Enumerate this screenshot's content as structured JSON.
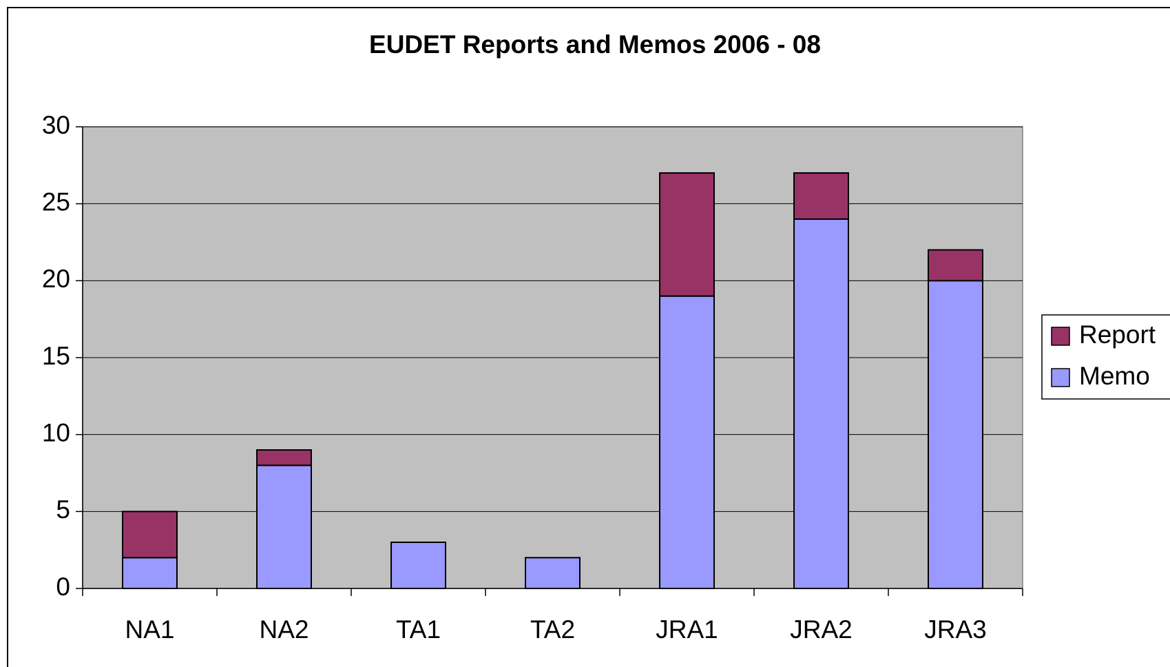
{
  "chart_data": {
    "type": "bar",
    "stacked": true,
    "title": "EUDET Reports and Memos 2006 - 08",
    "categories": [
      "NA1",
      "NA2",
      "TA1",
      "TA2",
      "JRA1",
      "JRA2",
      "JRA3"
    ],
    "series": [
      {
        "name": "Memo",
        "color": "#9999ff",
        "values": [
          2,
          8,
          3,
          2,
          19,
          24,
          20
        ]
      },
      {
        "name": "Report",
        "color": "#993366",
        "values": [
          3,
          1,
          0,
          0,
          8,
          3,
          2
        ]
      }
    ],
    "ylim": [
      0,
      30
    ],
    "yticks": [
      0,
      5,
      10,
      15,
      20,
      25,
      30
    ],
    "grid": true,
    "legend": "right"
  }
}
